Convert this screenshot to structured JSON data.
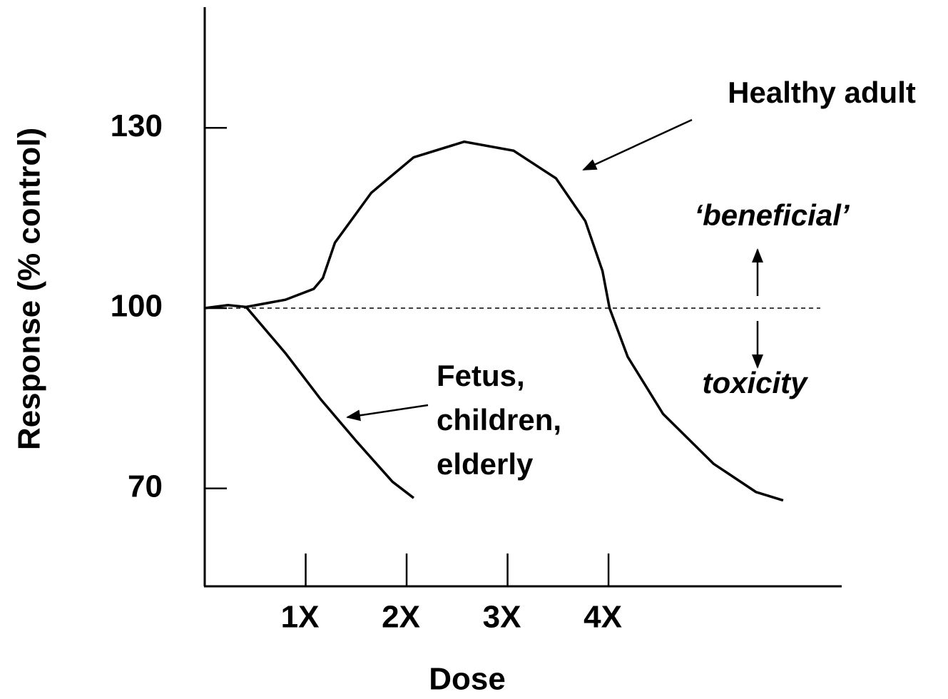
{
  "chart_data": {
    "type": "line",
    "xlabel": "Dose",
    "ylabel": "Response (% control)",
    "xlim": [
      0,
      6.31
    ],
    "ylim": [
      53.7,
      150.1
    ],
    "xticks": [
      {
        "value": 1,
        "label": "1X"
      },
      {
        "value": 2,
        "label": "2X"
      },
      {
        "value": 3,
        "label": "3X"
      },
      {
        "value": 4,
        "label": "4X"
      }
    ],
    "yticks": [
      70,
      100,
      130
    ],
    "hline": 100,
    "series": [
      {
        "color": "#000000",
        "x": [
          0,
          0.23,
          0.41,
          0.8,
          1.08,
          1.17,
          1.29,
          1.65,
          2.07,
          2.57,
          3.06,
          3.48,
          3.77,
          3.94,
          4.01,
          4.19,
          4.54,
          5.04,
          5.46,
          5.73
        ],
        "values": [
          100,
          100.5,
          100.2,
          101.4,
          103.2,
          105.0,
          110.9,
          119.2,
          125.1,
          127.7,
          126.2,
          121.6,
          114.5,
          106.2,
          100,
          91.9,
          82.4,
          74.1,
          69.4,
          68.0
        ]
      },
      {
        "color": "#000000",
        "x": [
          0.41,
          0.8,
          1.15,
          1.51,
          1.86,
          2.07
        ],
        "values": [
          100.2,
          92.5,
          84.8,
          77.7,
          71.1,
          68.4
        ]
      }
    ],
    "annotations": [
      {
        "text": "Healthy adult"
      },
      {
        "text": "‘beneficial’"
      },
      {
        "text": "toxicity"
      },
      {
        "lines": [
          "Fetus,",
          "children,",
          "elderly"
        ]
      }
    ]
  }
}
